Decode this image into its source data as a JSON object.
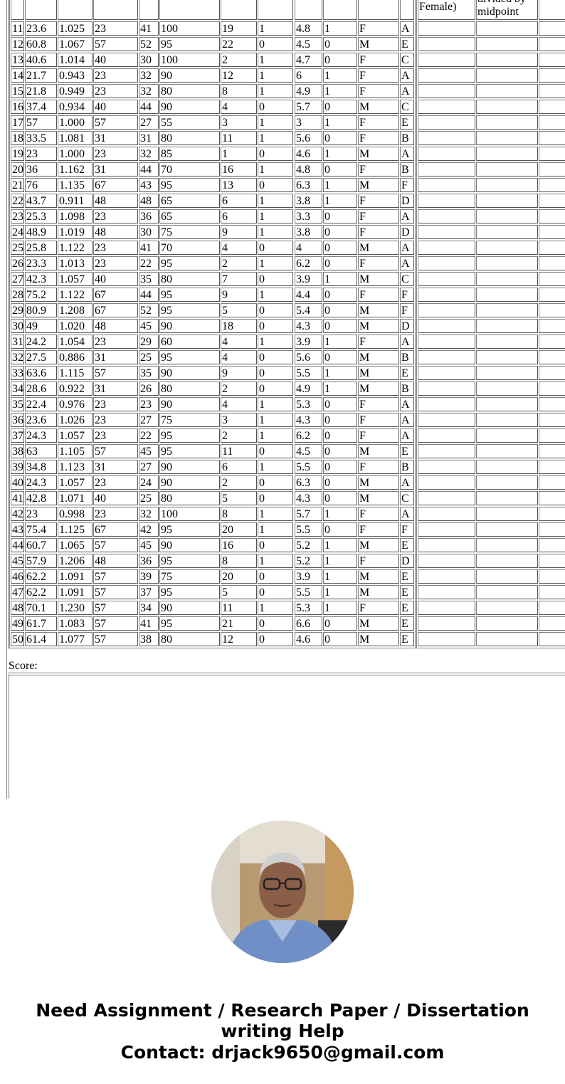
{
  "table": {
    "header_fragments": {
      "col_gender_tail": "Female)",
      "col_ratio_tail_1": "divided by",
      "col_ratio_tail_2": "midpoint"
    },
    "rows": [
      [
        "11",
        "23.6",
        "1.025",
        "23",
        "41",
        "100",
        "19",
        "1",
        "4.8",
        "1",
        "F",
        "A"
      ],
      [
        "12",
        "60.8",
        "1.067",
        "57",
        "52",
        "95",
        "22",
        "0",
        "4.5",
        "0",
        "M",
        "E"
      ],
      [
        "13",
        "40.6",
        "1.014",
        "40",
        "30",
        "100",
        "2",
        "1",
        "4.7",
        "0",
        "F",
        "C"
      ],
      [
        "14",
        "21.7",
        "0.943",
        "23",
        "32",
        "90",
        "12",
        "1",
        "6",
        "1",
        "F",
        "A"
      ],
      [
        "15",
        "21.8",
        "0.949",
        "23",
        "32",
        "80",
        "8",
        "1",
        "4.9",
        "1",
        "F",
        "A"
      ],
      [
        "16",
        "37.4",
        "0.934",
        "40",
        "44",
        "90",
        "4",
        "0",
        "5.7",
        "0",
        "M",
        "C"
      ],
      [
        "17",
        "57",
        "1.000",
        "57",
        "27",
        "55",
        "3",
        "1",
        "3",
        "1",
        "F",
        "E"
      ],
      [
        "18",
        "33.5",
        "1.081",
        "31",
        "31",
        "80",
        "11",
        "1",
        "5.6",
        "0",
        "F",
        "B"
      ],
      [
        "19",
        "23",
        "1.000",
        "23",
        "32",
        "85",
        "1",
        "0",
        "4.6",
        "1",
        "M",
        "A"
      ],
      [
        "20",
        "36",
        "1.162",
        "31",
        "44",
        "70",
        "16",
        "1",
        "4.8",
        "0",
        "F",
        "B"
      ],
      [
        "21",
        "76",
        "1.135",
        "67",
        "43",
        "95",
        "13",
        "0",
        "6.3",
        "1",
        "M",
        "F"
      ],
      [
        "22",
        "43.7",
        "0.911",
        "48",
        "48",
        "65",
        "6",
        "1",
        "3.8",
        "1",
        "F",
        "D"
      ],
      [
        "23",
        "25.3",
        "1.098",
        "23",
        "36",
        "65",
        "6",
        "1",
        "3.3",
        "0",
        "F",
        "A"
      ],
      [
        "24",
        "48.9",
        "1.019",
        "48",
        "30",
        "75",
        "9",
        "1",
        "3.8",
        "0",
        "F",
        "D"
      ],
      [
        "25",
        "25.8",
        "1.122",
        "23",
        "41",
        "70",
        "4",
        "0",
        "4",
        "0",
        "M",
        "A"
      ],
      [
        "26",
        "23.3",
        "1.013",
        "23",
        "22",
        "95",
        "2",
        "1",
        "6.2",
        "0",
        "F",
        "A"
      ],
      [
        "27",
        "42.3",
        "1.057",
        "40",
        "35",
        "80",
        "7",
        "0",
        "3.9",
        "1",
        "M",
        "C"
      ],
      [
        "28",
        "75.2",
        "1.122",
        "67",
        "44",
        "95",
        "9",
        "1",
        "4.4",
        "0",
        "F",
        "F"
      ],
      [
        "29",
        "80.9",
        "1.208",
        "67",
        "52",
        "95",
        "5",
        "0",
        "5.4",
        "0",
        "M",
        "F"
      ],
      [
        "30",
        "49",
        "1.020",
        "48",
        "45",
        "90",
        "18",
        "0",
        "4.3",
        "0",
        "M",
        "D"
      ],
      [
        "31",
        "24.2",
        "1.054",
        "23",
        "29",
        "60",
        "4",
        "1",
        "3.9",
        "1",
        "F",
        "A"
      ],
      [
        "32",
        "27.5",
        "0.886",
        "31",
        "25",
        "95",
        "4",
        "0",
        "5.6",
        "0",
        "M",
        "B"
      ],
      [
        "33",
        "63.6",
        "1.115",
        "57",
        "35",
        "90",
        "9",
        "0",
        "5.5",
        "1",
        "M",
        "E"
      ],
      [
        "34",
        "28.6",
        "0.922",
        "31",
        "26",
        "80",
        "2",
        "0",
        "4.9",
        "1",
        "M",
        "B"
      ],
      [
        "35",
        "22.4",
        "0.976",
        "23",
        "23",
        "90",
        "4",
        "1",
        "5.3",
        "0",
        "F",
        "A"
      ],
      [
        "36",
        "23.6",
        "1.026",
        "23",
        "27",
        "75",
        "3",
        "1",
        "4.3",
        "0",
        "F",
        "A"
      ],
      [
        "37",
        "24.3",
        "1.057",
        "23",
        "22",
        "95",
        "2",
        "1",
        "6.2",
        "0",
        "F",
        "A"
      ],
      [
        "38",
        "63",
        "1.105",
        "57",
        "45",
        "95",
        "11",
        "0",
        "4.5",
        "0",
        "M",
        "E"
      ],
      [
        "39",
        "34.8",
        "1.123",
        "31",
        "27",
        "90",
        "6",
        "1",
        "5.5",
        "0",
        "F",
        "B"
      ],
      [
        "40",
        "24.3",
        "1.057",
        "23",
        "24",
        "90",
        "2",
        "0",
        "6.3",
        "0",
        "M",
        "A"
      ],
      [
        "41",
        "42.8",
        "1.071",
        "40",
        "25",
        "80",
        "5",
        "0",
        "4.3",
        "0",
        "M",
        "C"
      ],
      [
        "42",
        "23",
        "0.998",
        "23",
        "32",
        "100",
        "8",
        "1",
        "5.7",
        "1",
        "F",
        "A"
      ],
      [
        "43",
        "75.4",
        "1.125",
        "67",
        "42",
        "95",
        "20",
        "1",
        "5.5",
        "0",
        "F",
        "F"
      ],
      [
        "44",
        "60.7",
        "1.065",
        "57",
        "45",
        "90",
        "16",
        "0",
        "5.2",
        "1",
        "M",
        "E"
      ],
      [
        "45",
        "57.9",
        "1.206",
        "48",
        "36",
        "95",
        "8",
        "1",
        "5.2",
        "1",
        "F",
        "D"
      ],
      [
        "46",
        "62.2",
        "1.091",
        "57",
        "39",
        "75",
        "20",
        "0",
        "3.9",
        "1",
        "M",
        "E"
      ],
      [
        "47",
        "62.2",
        "1.091",
        "57",
        "37",
        "95",
        "5",
        "0",
        "5.5",
        "1",
        "M",
        "E"
      ],
      [
        "48",
        "70.1",
        "1.230",
        "57",
        "34",
        "90",
        "11",
        "1",
        "5.3",
        "1",
        "F",
        "E"
      ],
      [
        "49",
        "61.7",
        "1.083",
        "57",
        "41",
        "95",
        "21",
        "0",
        "6.6",
        "0",
        "M",
        "E"
      ],
      [
        "50",
        "61.4",
        "1.077",
        "57",
        "38",
        "80",
        "12",
        "0",
        "4.6",
        "0",
        "M",
        "E"
      ]
    ]
  },
  "score_label": "Score:",
  "promo": {
    "line1": "Need Assignment / Research Paper / Dissertation",
    "line2": "writing Help",
    "line3": "Contact: drjack9650@gmail.com"
  }
}
